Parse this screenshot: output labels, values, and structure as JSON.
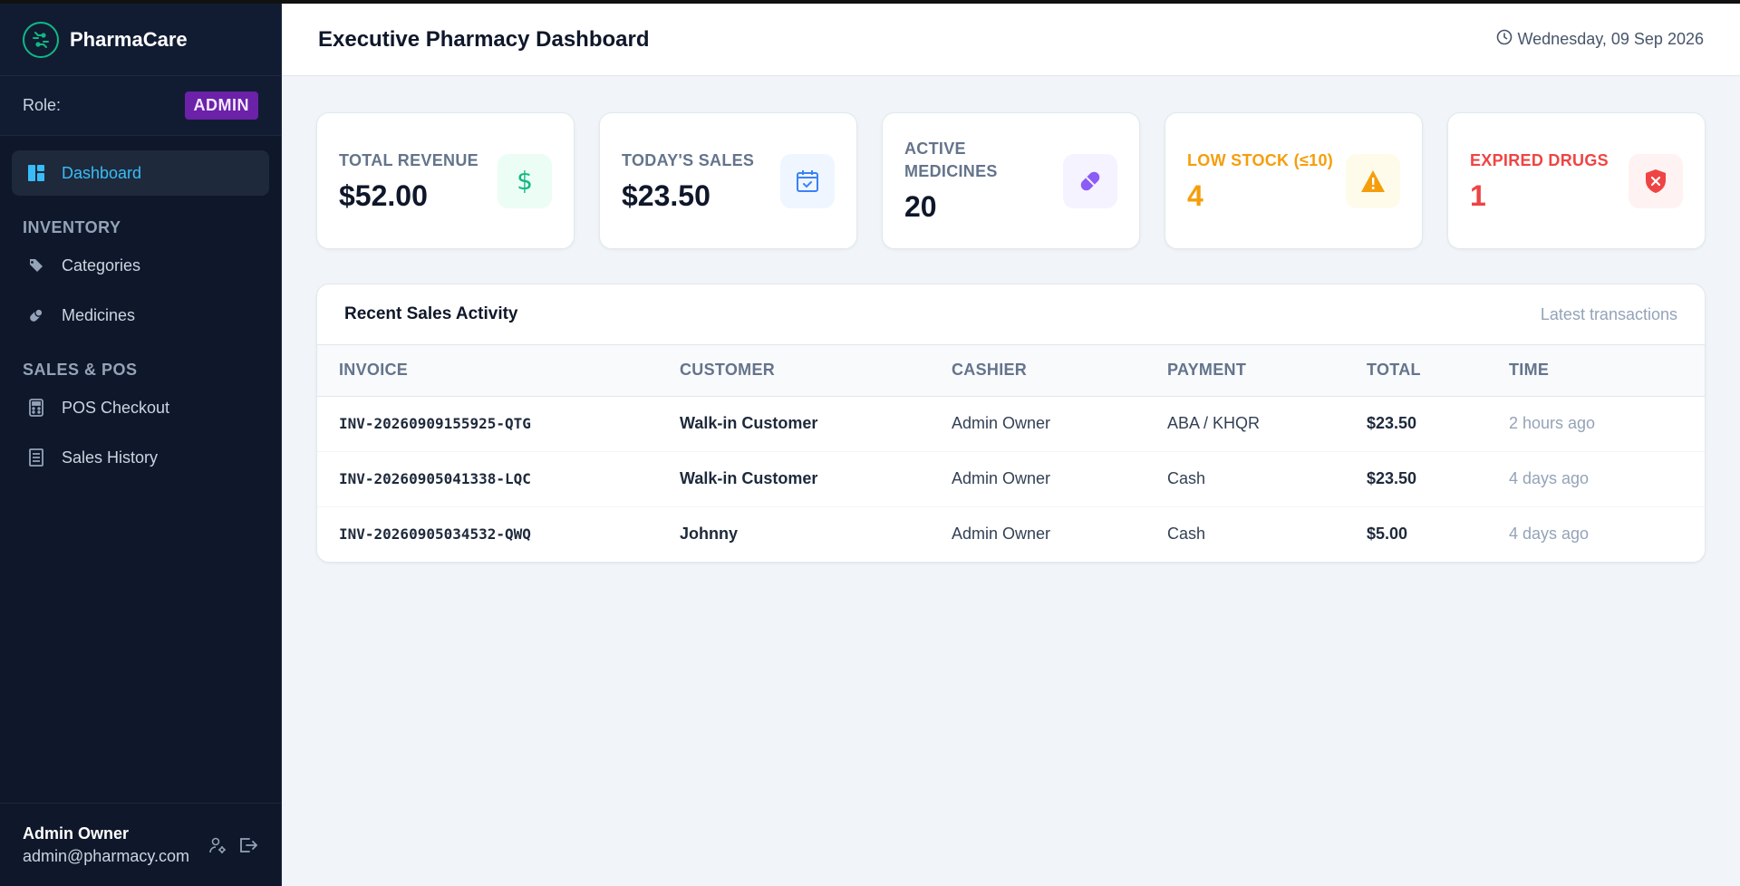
{
  "brand": {
    "name": "PharmaCare",
    "icon": "circuit-logo-icon",
    "color": "#10b981"
  },
  "role": {
    "label": "Role:",
    "value": "ADMIN"
  },
  "nav": {
    "dashboard": "Dashboard",
    "inventory_section": "INVENTORY",
    "categories": "Categories",
    "medicines": "Medicines",
    "sales_section": "SALES & POS",
    "pos_checkout": "POS Checkout",
    "sales_history": "Sales History"
  },
  "user": {
    "name": "Admin Owner",
    "email": "admin@pharmacy.com"
  },
  "header": {
    "title": "Executive Pharmacy Dashboard",
    "date": "Wednesday, 09 Sep 2026"
  },
  "cards": [
    {
      "label": "TOTAL REVENUE",
      "value": "$52.00",
      "icon": "dollar-icon",
      "accent": "#10b981",
      "bg": "#ecfdf5",
      "label_color": "#64748b",
      "value_color": "#0f172a"
    },
    {
      "label": "TODAY'S SALES",
      "value": "$23.50",
      "icon": "calendar-check-icon",
      "accent": "#3b82f6",
      "bg": "#eff6ff",
      "label_color": "#64748b",
      "value_color": "#0f172a"
    },
    {
      "label": "ACTIVE MEDICINES",
      "value": "20",
      "icon": "pill-icon",
      "accent": "#8b5cf6",
      "bg": "#f5f3ff",
      "label_color": "#64748b",
      "value_color": "#0f172a"
    },
    {
      "label": "LOW STOCK (≤10)",
      "value": "4",
      "icon": "warning-icon",
      "accent": "#f59e0b",
      "bg": "#fffbeb",
      "label_color": "#f59e0b",
      "value_color": "#f59e0b"
    },
    {
      "label": "EXPIRED DRUGS",
      "value": "1",
      "icon": "shield-x-icon",
      "accent": "#ef4444",
      "bg": "#fef2f2",
      "label_color": "#ef4444",
      "value_color": "#ef4444"
    }
  ],
  "sales": {
    "title": "Recent Sales Activity",
    "subtitle": "Latest transactions",
    "columns": [
      "INVOICE",
      "CUSTOMER",
      "CASHIER",
      "PAYMENT",
      "TOTAL",
      "TIME"
    ],
    "rows": [
      {
        "invoice": "INV-20260909155925-QTG",
        "customer": "Walk-in Customer",
        "cashier": "Admin Owner",
        "payment": "ABA / KHQR",
        "total": "$23.50",
        "time": "2 hours ago"
      },
      {
        "invoice": "INV-20260905041338-LQC",
        "customer": "Walk-in Customer",
        "cashier": "Admin Owner",
        "payment": "Cash",
        "total": "$23.50",
        "time": "4 days ago"
      },
      {
        "invoice": "INV-20260905034532-QWQ",
        "customer": "Johnny",
        "cashier": "Admin Owner",
        "payment": "Cash",
        "total": "$5.00",
        "time": "4 days ago"
      }
    ]
  }
}
